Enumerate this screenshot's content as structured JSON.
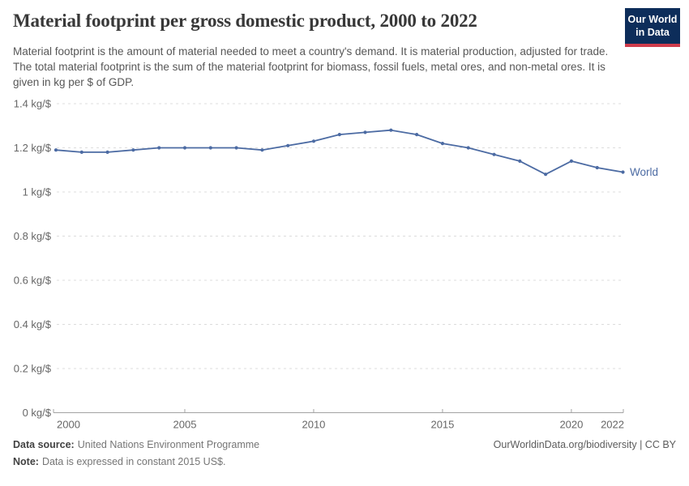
{
  "header": {
    "title": "Material footprint per gross domestic product, 2000 to 2022",
    "subtitle": "Material footprint is the amount of material needed to meet a country's demand. It is material production, adjusted for trade. The total material footprint is the sum of the material footprint for biomass, fossil fuels, metal ores, and non-metal ores. It is given in kg per $ of GDP.",
    "logo": {
      "line1": "Our World",
      "line2": "in Data",
      "bg_color": "#0d2d5a",
      "accent_color": "#cf3c4c"
    }
  },
  "chart_data": {
    "type": "line",
    "title": "Material footprint per gross domestic product, 2000 to 2022",
    "xlabel": "",
    "ylabel": "kg per $ of GDP",
    "xlim": [
      2000,
      2022
    ],
    "ylim": [
      0,
      1.4
    ],
    "grid": "dashed-horizontal",
    "legend": "end-of-line-label",
    "x": [
      2000,
      2001,
      2002,
      2003,
      2004,
      2005,
      2006,
      2007,
      2008,
      2009,
      2010,
      2011,
      2012,
      2013,
      2014,
      2015,
      2016,
      2017,
      2018,
      2019,
      2020,
      2021,
      2022
    ],
    "series": [
      {
        "name": "World",
        "color": "#4c6ba3",
        "values": [
          1.19,
          1.18,
          1.18,
          1.19,
          1.2,
          1.2,
          1.2,
          1.2,
          1.19,
          1.21,
          1.23,
          1.26,
          1.27,
          1.28,
          1.26,
          1.22,
          1.2,
          1.17,
          1.14,
          1.08,
          1.14,
          1.11,
          1.09
        ]
      }
    ],
    "y_ticks": [
      {
        "v": 1.4,
        "label": "1.4 kg/$"
      },
      {
        "v": 1.2,
        "label": "1.2 kg/$"
      },
      {
        "v": 1.0,
        "label": "1 kg/$"
      },
      {
        "v": 0.8,
        "label": "0.8 kg/$"
      },
      {
        "v": 0.6,
        "label": "0.6 kg/$"
      },
      {
        "v": 0.4,
        "label": "0.4 kg/$"
      },
      {
        "v": 0.2,
        "label": "0.2 kg/$"
      },
      {
        "v": 0.0,
        "label": "0 kg/$"
      }
    ],
    "x_ticks": [
      2000,
      2005,
      2010,
      2015,
      2020,
      2022
    ],
    "colors": {
      "gridline": "#dcdcdc",
      "axis": "#a3a3a3",
      "tick_label": "#666666"
    }
  },
  "footer": {
    "datasource_label": "Data source:",
    "datasource_value": "United Nations Environment Programme",
    "note_label": "Note:",
    "note_value": "Data is expressed in constant 2015 US$.",
    "right_text": "OurWorldinData.org/biodiversity | CC BY"
  }
}
